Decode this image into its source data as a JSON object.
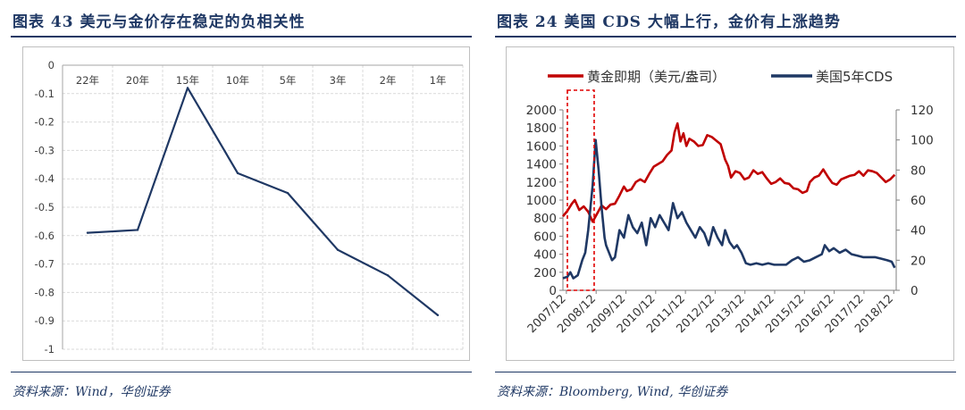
{
  "left": {
    "title": "图表 43   美元与金价存在稳定的负相关性",
    "source": "资料来源：Wind，华创证券",
    "line_color": "#1f3864"
  },
  "right": {
    "title": "图表 24  美国  CDS 大幅上行，金价有上涨趋势",
    "source": "资料来源：Bloomberg, Wind, 华创证券",
    "gold_color": "#c00000",
    "cds_color": "#1f3864",
    "highlight_color": "#e00000"
  },
  "chart_data": [
    {
      "type": "line",
      "title": "美元与金价存在稳定的负相关性",
      "categories": [
        "22年",
        "20年",
        "15年",
        "10年",
        "5年",
        "3年",
        "2年",
        "1年"
      ],
      "values": [
        -0.59,
        -0.58,
        -0.08,
        -0.38,
        -0.45,
        -0.65,
        -0.74,
        -0.88
      ],
      "ylim": [
        -1,
        0
      ],
      "yticks": [
        "0",
        "-0.1",
        "-0.2",
        "-0.3",
        "-0.4",
        "-0.5",
        "-0.6",
        "-0.7",
        "-0.8",
        "-0.9",
        "-1"
      ],
      "x_axis_position": "top",
      "grid": true
    },
    {
      "type": "line",
      "title": "美国 CDS 大幅上行，金价有上涨趋势",
      "legend": [
        "黄金即期（美元/盎司）",
        "美国5年CDS"
      ],
      "legend_position": "top",
      "categories": [
        "2007/12",
        "2008/12",
        "2009/12",
        "2010/12",
        "2011/12",
        "2012/12",
        "2013/12",
        "2014/12",
        "2015/12",
        "2016/12",
        "2017/12",
        "2018/12"
      ],
      "y_left_ticks": [
        "2000",
        "1800",
        "1600",
        "1400",
        "1200",
        "1000",
        "800",
        "600",
        "400",
        "200",
        "0"
      ],
      "y_right_ticks": [
        "120",
        "100",
        "80",
        "60",
        "40",
        "20",
        "0"
      ],
      "y_left_range": [
        0,
        2000
      ],
      "y_right_range": [
        0,
        120
      ],
      "x_range": [
        2007.8,
        2019.0
      ],
      "series": [
        {
          "name": "黄金即期（美元/盎司）",
          "axis": "left",
          "x": [
            2007.8,
            2007.95,
            2008.1,
            2008.2,
            2008.35,
            2008.5,
            2008.65,
            2008.8,
            2008.95,
            2009.1,
            2009.25,
            2009.4,
            2009.55,
            2009.7,
            2009.85,
            2009.95,
            2010.1,
            2010.25,
            2010.4,
            2010.55,
            2010.7,
            2010.85,
            2011.0,
            2011.15,
            2011.3,
            2011.45,
            2011.55,
            2011.65,
            2011.75,
            2011.85,
            2011.95,
            2012.05,
            2012.2,
            2012.35,
            2012.5,
            2012.65,
            2012.8,
            2012.95,
            2013.1,
            2013.25,
            2013.35,
            2013.45,
            2013.6,
            2013.75,
            2013.9,
            2014.05,
            2014.2,
            2014.35,
            2014.5,
            2014.65,
            2014.8,
            2014.95,
            2015.1,
            2015.25,
            2015.4,
            2015.55,
            2015.7,
            2015.85,
            2016.0,
            2016.1,
            2016.25,
            2016.4,
            2016.55,
            2016.7,
            2016.85,
            2017.0,
            2017.15,
            2017.3,
            2017.45,
            2017.6,
            2017.75,
            2017.9,
            2018.05,
            2018.2,
            2018.35,
            2018.5,
            2018.65,
            2018.8,
            2018.95
          ],
          "values": [
            820,
            880,
            960,
            1000,
            890,
            930,
            870,
            760,
            850,
            940,
            900,
            950,
            960,
            1050,
            1150,
            1100,
            1120,
            1200,
            1230,
            1200,
            1290,
            1370,
            1400,
            1430,
            1500,
            1550,
            1750,
            1850,
            1650,
            1740,
            1600,
            1680,
            1650,
            1600,
            1610,
            1720,
            1700,
            1660,
            1620,
            1450,
            1380,
            1250,
            1320,
            1300,
            1230,
            1250,
            1330,
            1290,
            1310,
            1240,
            1180,
            1200,
            1240,
            1190,
            1180,
            1130,
            1120,
            1080,
            1100,
            1200,
            1250,
            1270,
            1340,
            1260,
            1190,
            1170,
            1230,
            1250,
            1270,
            1280,
            1320,
            1270,
            1330,
            1320,
            1300,
            1250,
            1200,
            1230,
            1280
          ]
        },
        {
          "name": "美国5年CDS",
          "axis": "right",
          "x": [
            2007.8,
            2007.95,
            2008.05,
            2008.15,
            2008.3,
            2008.45,
            2008.55,
            2008.65,
            2008.75,
            2008.8,
            2008.9,
            2009.0,
            2009.1,
            2009.15,
            2009.2,
            2009.25,
            2009.35,
            2009.45,
            2009.55,
            2009.7,
            2009.85,
            2010.0,
            2010.15,
            2010.3,
            2010.45,
            2010.6,
            2010.75,
            2010.9,
            2011.05,
            2011.2,
            2011.35,
            2011.5,
            2011.65,
            2011.8,
            2011.95,
            2012.1,
            2012.25,
            2012.4,
            2012.55,
            2012.7,
            2012.85,
            2013.0,
            2013.15,
            2013.25,
            2013.4,
            2013.55,
            2013.65,
            2013.8,
            2013.95,
            2014.1,
            2014.3,
            2014.5,
            2014.7,
            2014.9,
            2015.1,
            2015.3,
            2015.5,
            2015.7,
            2015.9,
            2016.1,
            2016.3,
            2016.5,
            2016.6,
            2016.75,
            2016.9,
            2017.1,
            2017.3,
            2017.5,
            2017.7,
            2017.9,
            2018.1,
            2018.3,
            2018.5,
            2018.7,
            2018.85,
            2018.95
          ],
          "values": [
            8,
            9,
            12,
            8,
            10,
            20,
            25,
            40,
            60,
            70,
            100,
            80,
            55,
            45,
            35,
            30,
            25,
            20,
            22,
            40,
            35,
            50,
            42,
            38,
            45,
            30,
            48,
            42,
            50,
            45,
            40,
            58,
            48,
            52,
            45,
            40,
            35,
            42,
            38,
            30,
            42,
            35,
            30,
            40,
            32,
            28,
            30,
            25,
            18,
            17,
            18,
            17,
            18,
            17,
            17,
            17,
            20,
            22,
            19,
            20,
            22,
            24,
            30,
            26,
            28,
            25,
            27,
            24,
            23,
            22,
            22,
            22,
            21,
            20,
            19,
            15
          ]
        }
      ],
      "highlight_range": [
        "2008/12",
        "2009/12"
      ],
      "grid": false
    }
  ]
}
